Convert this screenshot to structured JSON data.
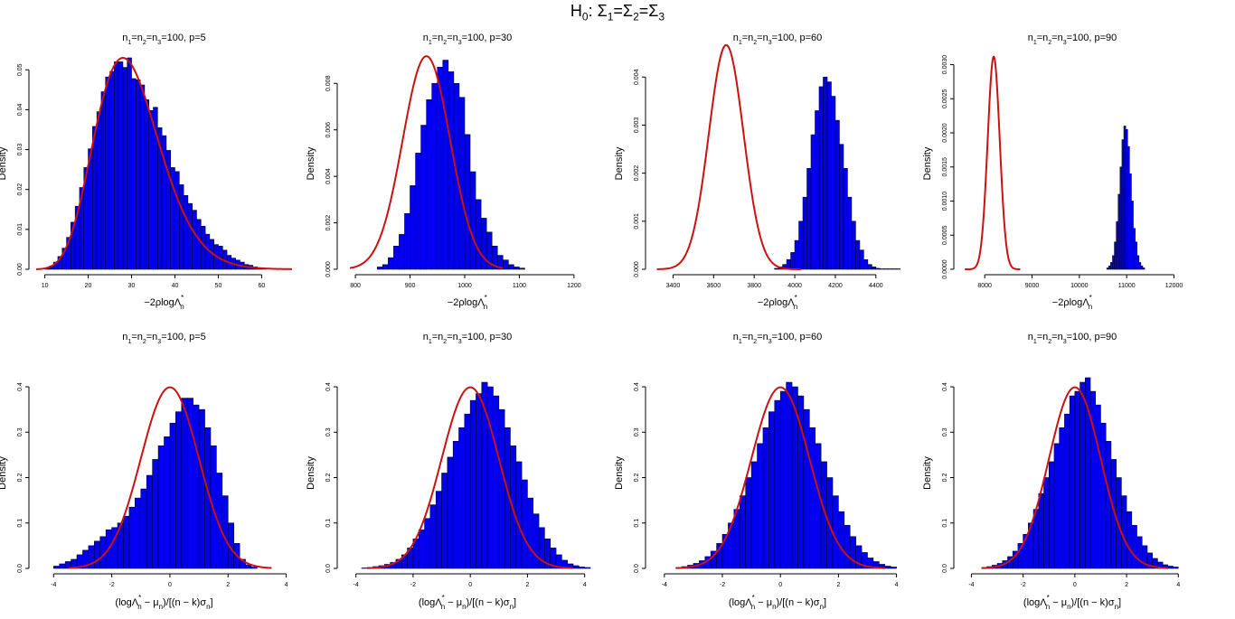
{
  "figure": {
    "title_main": "H",
    "title_sub": "0",
    "title_rest": ": Σ",
    "title_parts": [
      "H",
      "0",
      ": Σ",
      "1",
      "=Σ",
      "2",
      "=Σ",
      "3"
    ],
    "ylabel": "Density",
    "xlabel_top": "−2ρlogΛ",
    "xlabel_top_sub": "n",
    "xlabel_top_sup": "*",
    "xlabel_bottom": "(logΛ",
    "xlabel_bottom_parts": [
      "(logΛ",
      "*",
      "n",
      " − μ",
      "n",
      ")/[(n − k)σ",
      "n",
      "]"
    ],
    "colors": {
      "bar_fill": "#0000ee",
      "bar_stroke": "#000033",
      "curve": "#cc1111",
      "axis": "#000000"
    }
  },
  "chart_data": [
    {
      "type": "bar",
      "panel": "top-1",
      "title": "n1=n2=n3=100, p=5",
      "title_parts": [
        "n",
        "1",
        "=n",
        "2",
        "=n",
        "3",
        "=100, p=5"
      ],
      "xlim": [
        8,
        67
      ],
      "ylim": [
        0,
        0.053
      ],
      "xticks": [
        10,
        20,
        30,
        40,
        50,
        60
      ],
      "yticks": [
        0.0,
        0.01,
        0.02,
        0.03,
        0.04,
        0.05
      ],
      "ytick_labels": [
        "0.00",
        "0.01",
        "0.02",
        "0.03",
        "0.04",
        "0.05"
      ],
      "hist": {
        "start": 10,
        "width": 1,
        "values": [
          0.0003,
          0.0008,
          0.0018,
          0.0032,
          0.0053,
          0.008,
          0.0118,
          0.0158,
          0.0205,
          0.0255,
          0.0302,
          0.0358,
          0.0395,
          0.0445,
          0.0482,
          0.0496,
          0.052,
          0.052,
          0.0506,
          0.053,
          0.0478,
          0.0475,
          0.0462,
          0.0425,
          0.0398,
          0.0406,
          0.0355,
          0.0335,
          0.0298,
          0.0255,
          0.0245,
          0.0212,
          0.0185,
          0.0165,
          0.0148,
          0.0125,
          0.0108,
          0.0088,
          0.0075,
          0.0062,
          0.0058,
          0.0048,
          0.0035,
          0.0028,
          0.0023,
          0.0018,
          0.0012,
          0.001,
          0.0006,
          0.0004,
          0.0002
        ]
      },
      "curve": {
        "kind": "chisq",
        "df": 30,
        "xmin": 8,
        "xmax": 67
      }
    },
    {
      "type": "bar",
      "panel": "top-2",
      "title": "n1=n2=n3=100, p=30",
      "title_parts": [
        "n",
        "1",
        "=n",
        "2",
        "=n",
        "3",
        "=100, p=30"
      ],
      "xlim": [
        780,
        1230
      ],
      "ylim": [
        0,
        0.0091
      ],
      "xticks": [
        800,
        900,
        1000,
        1100,
        1200
      ],
      "yticks": [
        0.0,
        0.002,
        0.004,
        0.006,
        0.008
      ],
      "ytick_labels": [
        "0.000",
        "0.002",
        "0.004",
        "0.006",
        "0.008"
      ],
      "hist": {
        "start": 840,
        "width": 10,
        "values": [
          0.0001,
          0.0002,
          0.0005,
          0.001,
          0.0015,
          0.0024,
          0.0036,
          0.005,
          0.0062,
          0.0073,
          0.008,
          0.0087,
          0.009,
          0.0085,
          0.008,
          0.0074,
          0.0058,
          0.0042,
          0.003,
          0.0022,
          0.0016,
          0.001,
          0.0006,
          0.0004,
          0.0002,
          0.0001,
          5e-05
        ]
      },
      "curve": {
        "kind": "normal",
        "mean": 930,
        "sd": 43.5,
        "xmin": 790,
        "xmax": 1070
      }
    },
    {
      "type": "bar",
      "panel": "top-3",
      "title": "n1=n2=n3=100, p=60",
      "title_parts": [
        "n",
        "1",
        "=n",
        "2",
        "=n",
        "3",
        "=100, p=60"
      ],
      "xlim": [
        3300,
        4530
      ],
      "ylim": [
        0,
        0.0044
      ],
      "xticks": [
        3400,
        3600,
        3800,
        4000,
        4200,
        4400
      ],
      "yticks": [
        0.0,
        0.001,
        0.002,
        0.003,
        0.004
      ],
      "ytick_labels": [
        "0.000",
        "0.001",
        "0.002",
        "0.003",
        "0.004"
      ],
      "hist": {
        "start": 3900,
        "width": 20,
        "values": [
          2e-05,
          5e-05,
          0.0001,
          0.0002,
          0.00035,
          0.0006,
          0.001,
          0.0015,
          0.0021,
          0.0028,
          0.0033,
          0.0038,
          0.004,
          0.0039,
          0.0036,
          0.0031,
          0.0026,
          0.0021,
          0.0015,
          0.001,
          0.0006,
          0.0004,
          0.0002,
          0.0001,
          5e-05,
          2e-05,
          1e-05,
          1e-05,
          1e-05,
          1e-05,
          1e-05
        ]
      },
      "curve": {
        "kind": "normal",
        "mean": 3662,
        "sd": 85.5,
        "xmin": 3320,
        "xmax": 4030
      }
    },
    {
      "type": "bar",
      "panel": "top-4",
      "title": "n1=n2=n3=100, p=90",
      "title_parts": [
        "n",
        "1",
        "=n",
        "2",
        "=n",
        "3",
        "=100, p=90"
      ],
      "xlim": [
        7500,
        12200
      ],
      "ylim": [
        0,
        0.0031
      ],
      "xticks": [
        8000,
        9000,
        10000,
        11000,
        12000
      ],
      "yticks": [
        0.0,
        0.0005,
        0.001,
        0.0015,
        0.002,
        0.0025,
        0.003
      ],
      "ytick_labels": [
        "0.0000",
        "0.0005",
        "0.0010",
        "0.0015",
        "0.0020",
        "0.0025",
        "0.0030"
      ],
      "hist": {
        "start": 10580,
        "width": 40,
        "values": [
          2e-05,
          5e-05,
          0.0001,
          0.0002,
          0.0004,
          0.0007,
          0.0011,
          0.0015,
          0.0019,
          0.0021,
          0.00205,
          0.0018,
          0.0014,
          0.001,
          0.0006,
          0.0004,
          0.0002,
          0.0001,
          5e-05,
          2e-05
        ]
      },
      "curve": {
        "kind": "normal",
        "mean": 8190,
        "sd": 128,
        "xmin": 7580,
        "xmax": 8750
      }
    },
    {
      "type": "bar",
      "panel": "bottom-1",
      "title": "n1=n2=n3=100, p=5",
      "title_parts": [
        "n",
        "1",
        "=n",
        "2",
        "=n",
        "3",
        "=100, p=5"
      ],
      "xlim": [
        -4.6,
        4.2
      ],
      "ylim": [
        0,
        0.42
      ],
      "xticks": [
        -4,
        -2,
        0,
        2,
        4
      ],
      "yticks": [
        0.0,
        0.1,
        0.2,
        0.3,
        0.4
      ],
      "ytick_labels": [
        "0.0",
        "0.1",
        "0.2",
        "0.3",
        "0.4"
      ],
      "hist": {
        "start": -4,
        "width": 0.2,
        "values": [
          0.005,
          0.01,
          0.015,
          0.02,
          0.03,
          0.04,
          0.05,
          0.06,
          0.07,
          0.085,
          0.09,
          0.1,
          0.115,
          0.135,
          0.155,
          0.175,
          0.205,
          0.24,
          0.27,
          0.29,
          0.32,
          0.345,
          0.375,
          0.375,
          0.36,
          0.35,
          0.31,
          0.27,
          0.21,
          0.16,
          0.1,
          0.055,
          0.02,
          0.008,
          0.003
        ]
      },
      "curve": {
        "kind": "normal",
        "mean": 0,
        "sd": 1,
        "xmin": -3.5,
        "xmax": 3.5
      }
    },
    {
      "type": "bar",
      "panel": "bottom-2",
      "title": "n1=n2=n3=100, p=30",
      "title_parts": [
        "n",
        "1",
        "=n",
        "2",
        "=n",
        "3",
        "=100, p=30"
      ],
      "xlim": [
        -4.4,
        4.2
      ],
      "ylim": [
        0,
        0.42
      ],
      "xticks": [
        -4,
        -2,
        0,
        2,
        4
      ],
      "yticks": [
        0.0,
        0.1,
        0.2,
        0.3,
        0.4
      ],
      "ytick_labels": [
        "0.0",
        "0.1",
        "0.2",
        "0.3",
        "0.4"
      ],
      "hist": {
        "start": -3.8,
        "width": 0.2,
        "values": [
          0.001,
          0.002,
          0.004,
          0.006,
          0.009,
          0.013,
          0.02,
          0.03,
          0.045,
          0.065,
          0.085,
          0.11,
          0.14,
          0.17,
          0.21,
          0.245,
          0.28,
          0.31,
          0.34,
          0.37,
          0.385,
          0.41,
          0.4,
          0.38,
          0.35,
          0.31,
          0.27,
          0.235,
          0.195,
          0.155,
          0.12,
          0.09,
          0.065,
          0.045,
          0.03,
          0.018,
          0.01,
          0.006,
          0.003,
          0.002
        ]
      },
      "curve": {
        "kind": "normal",
        "mean": 0,
        "sd": 1,
        "xmin": -3.6,
        "xmax": 3.6
      }
    },
    {
      "type": "bar",
      "panel": "bottom-3",
      "title": "n1=n2=n3=100, p=60",
      "title_parts": [
        "n",
        "1",
        "=n",
        "2",
        "=n",
        "3",
        "=100, p=60"
      ],
      "xlim": [
        -4.4,
        4.2
      ],
      "ylim": [
        0,
        0.42
      ],
      "xticks": [
        -4,
        -2,
        0,
        2,
        4
      ],
      "yticks": [
        0.0,
        0.1,
        0.2,
        0.3,
        0.4
      ],
      "ytick_labels": [
        "0.0",
        "0.1",
        "0.2",
        "0.3",
        "0.4"
      ],
      "hist": {
        "start": -3.6,
        "width": 0.2,
        "values": [
          0.002,
          0.004,
          0.007,
          0.011,
          0.017,
          0.026,
          0.038,
          0.055,
          0.075,
          0.1,
          0.13,
          0.16,
          0.2,
          0.235,
          0.275,
          0.31,
          0.345,
          0.37,
          0.39,
          0.41,
          0.4,
          0.38,
          0.35,
          0.31,
          0.275,
          0.235,
          0.2,
          0.16,
          0.125,
          0.095,
          0.07,
          0.05,
          0.035,
          0.023,
          0.015,
          0.009,
          0.005,
          0.003
        ]
      },
      "curve": {
        "kind": "normal",
        "mean": 0,
        "sd": 1,
        "xmin": -3.6,
        "xmax": 3.6
      }
    },
    {
      "type": "bar",
      "panel": "bottom-4",
      "title": "n1=n2=n3=100, p=90",
      "title_parts": [
        "n",
        "1",
        "=n",
        "2",
        "=n",
        "3",
        "=100, p=90"
      ],
      "xlim": [
        -4.4,
        4.2
      ],
      "ylim": [
        0,
        0.42
      ],
      "xticks": [
        -4,
        -2,
        0,
        2,
        4
      ],
      "yticks": [
        0.0,
        0.1,
        0.2,
        0.3,
        0.4
      ],
      "ytick_labels": [
        "0.0",
        "0.1",
        "0.2",
        "0.3",
        "0.4"
      ],
      "hist": {
        "start": -3.6,
        "width": 0.2,
        "values": [
          0.002,
          0.004,
          0.007,
          0.011,
          0.017,
          0.026,
          0.038,
          0.055,
          0.075,
          0.1,
          0.13,
          0.165,
          0.2,
          0.235,
          0.275,
          0.31,
          0.34,
          0.38,
          0.39,
          0.41,
          0.42,
          0.39,
          0.36,
          0.32,
          0.28,
          0.24,
          0.2,
          0.16,
          0.125,
          0.095,
          0.07,
          0.05,
          0.034,
          0.022,
          0.014,
          0.008,
          0.005,
          0.003
        ]
      },
      "curve": {
        "kind": "normal",
        "mean": 0,
        "sd": 1,
        "xmin": -3.6,
        "xmax": 3.6
      }
    }
  ]
}
